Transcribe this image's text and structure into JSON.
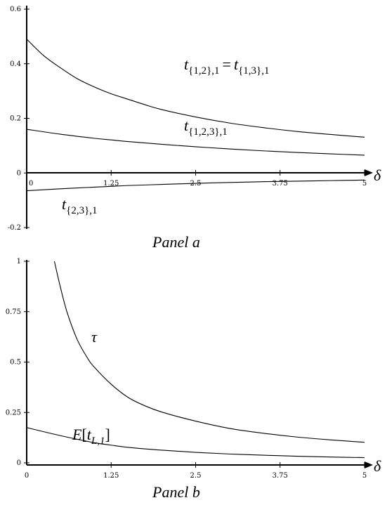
{
  "chart_data": [
    {
      "id": "panel_a",
      "type": "line",
      "title": "Panel a",
      "xlabel": "δ",
      "ylabel": "",
      "xlim": [
        0,
        5
      ],
      "ylim": [
        -0.2,
        0.6
      ],
      "xticks": [
        "0",
        "1.25",
        "2.5",
        "3.75",
        "5"
      ],
      "yticks": [
        "0.6",
        "0.4",
        "0.2",
        "0",
        "-0.2"
      ],
      "grid": false,
      "legend": "none",
      "series": [
        {
          "key": "s12",
          "x": [
            0,
            0.25,
            0.5,
            0.75,
            1,
            1.25,
            1.5,
            1.75,
            2,
            2.5,
            3,
            3.5,
            4,
            4.5,
            5
          ],
          "values": [
            0.49,
            0.43,
            0.385,
            0.345,
            0.315,
            0.29,
            0.27,
            0.25,
            0.232,
            0.205,
            0.183,
            0.166,
            0.152,
            0.141,
            0.131
          ]
        },
        {
          "key": "s123",
          "x": [
            0,
            0.5,
            1,
            1.25,
            1.5,
            2,
            2.5,
            3,
            3.5,
            4,
            4.5,
            5
          ],
          "values": [
            0.16,
            0.142,
            0.127,
            0.121,
            0.115,
            0.105,
            0.096,
            0.088,
            0.081,
            0.075,
            0.07,
            0.065
          ]
        },
        {
          "key": "s23",
          "x": [
            0,
            0.5,
            1,
            1.25,
            1.5,
            2,
            2.5,
            3,
            3.5,
            4,
            4.5,
            5
          ],
          "values": [
            -0.065,
            -0.058,
            -0.052,
            -0.049,
            -0.046,
            -0.042,
            -0.038,
            -0.035,
            -0.032,
            -0.03,
            -0.028,
            -0.026
          ]
        }
      ],
      "annotations": {
        "s12": {
          "t": "t",
          "sub": "{1,2},1",
          "eq": "=",
          "t2": "t",
          "sub2": "{1,3},1"
        },
        "s123": {
          "t": "t",
          "sub": "{1,2,3},1"
        },
        "s23": {
          "t": "t",
          "sub": "{2,3},1"
        }
      }
    },
    {
      "id": "panel_b",
      "type": "line",
      "title": "Panel b",
      "xlabel": "δ",
      "ylabel": "",
      "xlim": [
        0,
        5
      ],
      "ylim": [
        0,
        1
      ],
      "xticks": [
        "0",
        "1.25",
        "2.5",
        "3.75",
        "5"
      ],
      "yticks": [
        "1",
        "0.75",
        "0.5",
        "0.25",
        "0"
      ],
      "grid": false,
      "legend": "none",
      "series": [
        {
          "key": "tau",
          "x": [
            0.41,
            0.5,
            0.6,
            0.75,
            0.9,
            1.0,
            1.25,
            1.5,
            1.75,
            2.0,
            2.5,
            3.0,
            3.5,
            4.0,
            4.5,
            5.0
          ],
          "values": [
            1.0,
            0.87,
            0.745,
            0.61,
            0.52,
            0.475,
            0.39,
            0.325,
            0.283,
            0.252,
            0.207,
            0.171,
            0.147,
            0.128,
            0.114,
            0.102
          ]
        },
        {
          "key": "E",
          "x": [
            0,
            0.5,
            1,
            1.25,
            1.5,
            2,
            2.5,
            3,
            3.5,
            4,
            4.5,
            5
          ],
          "values": [
            0.175,
            0.135,
            0.1,
            0.088,
            0.077,
            0.063,
            0.052,
            0.044,
            0.038,
            0.033,
            0.029,
            0.026
          ]
        }
      ],
      "annotations": {
        "tau": {
          "t": "τ"
        },
        "E": {
          "t": "E",
          "lb": "[",
          "t2": "t",
          "sub": "L,1",
          "rb": "]"
        }
      }
    }
  ]
}
